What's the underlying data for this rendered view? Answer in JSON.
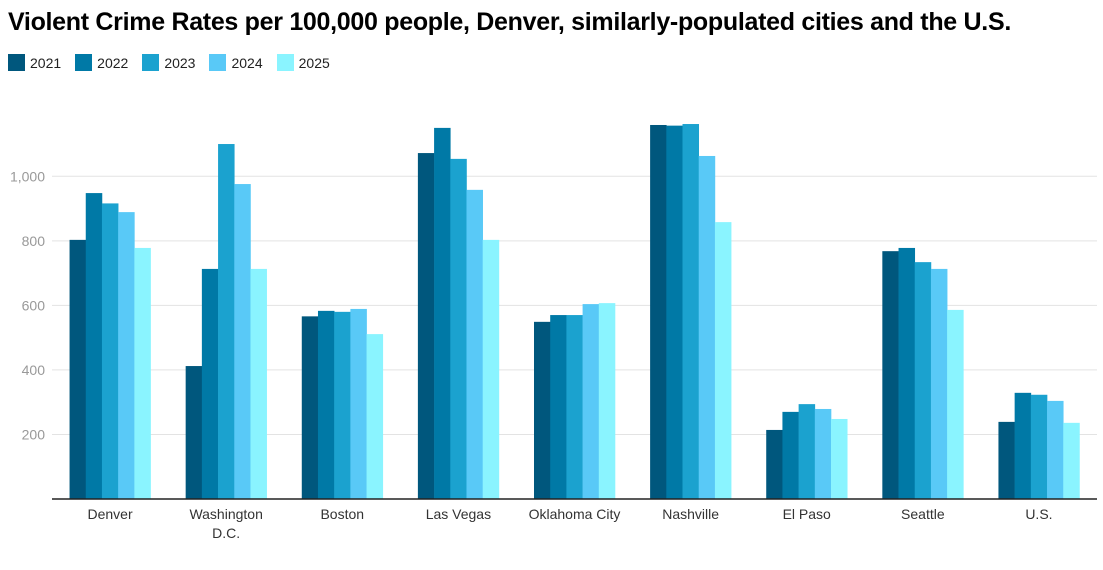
{
  "chart_data": {
    "type": "bar",
    "title": "Violent Crime Rates per 100,000 people, Denver, similarly-populated cities and the U.S.",
    "xlabel": "",
    "ylabel": "",
    "ylim": [
      0,
      1200
    ],
    "yticks": [
      "200",
      "400",
      "600",
      "800",
      "1,000"
    ],
    "ytick_values": [
      200,
      400,
      600,
      800,
      1000
    ],
    "grid": true,
    "legend_position": "top-left",
    "categories": [
      [
        "Denver"
      ],
      [
        "Washington",
        "D.C."
      ],
      [
        "Boston"
      ],
      [
        "Las Vegas"
      ],
      [
        "Oklahoma City"
      ],
      [
        "Nashville"
      ],
      [
        "El Paso"
      ],
      [
        "Seattle"
      ],
      [
        "U.S."
      ]
    ],
    "series": [
      {
        "name": "2021",
        "color": "#00577d",
        "values": [
          803,
          412,
          566,
          1072,
          549,
          1159,
          214,
          768,
          239
        ]
      },
      {
        "name": "2022",
        "color": "#0079a6",
        "values": [
          948,
          713,
          583,
          1150,
          570,
          1157,
          270,
          778,
          329
        ]
      },
      {
        "name": "2023",
        "color": "#1ba2cf",
        "values": [
          916,
          1100,
          580,
          1054,
          570,
          1162,
          294,
          734,
          323
        ]
      },
      {
        "name": "2024",
        "color": "#59c9f7",
        "values": [
          889,
          976,
          589,
          958,
          604,
          1063,
          279,
          713,
          304
        ]
      },
      {
        "name": "2025",
        "color": "#8af4ff",
        "values": [
          778,
          713,
          511,
          803,
          607,
          858,
          248,
          586,
          236
        ]
      }
    ]
  }
}
